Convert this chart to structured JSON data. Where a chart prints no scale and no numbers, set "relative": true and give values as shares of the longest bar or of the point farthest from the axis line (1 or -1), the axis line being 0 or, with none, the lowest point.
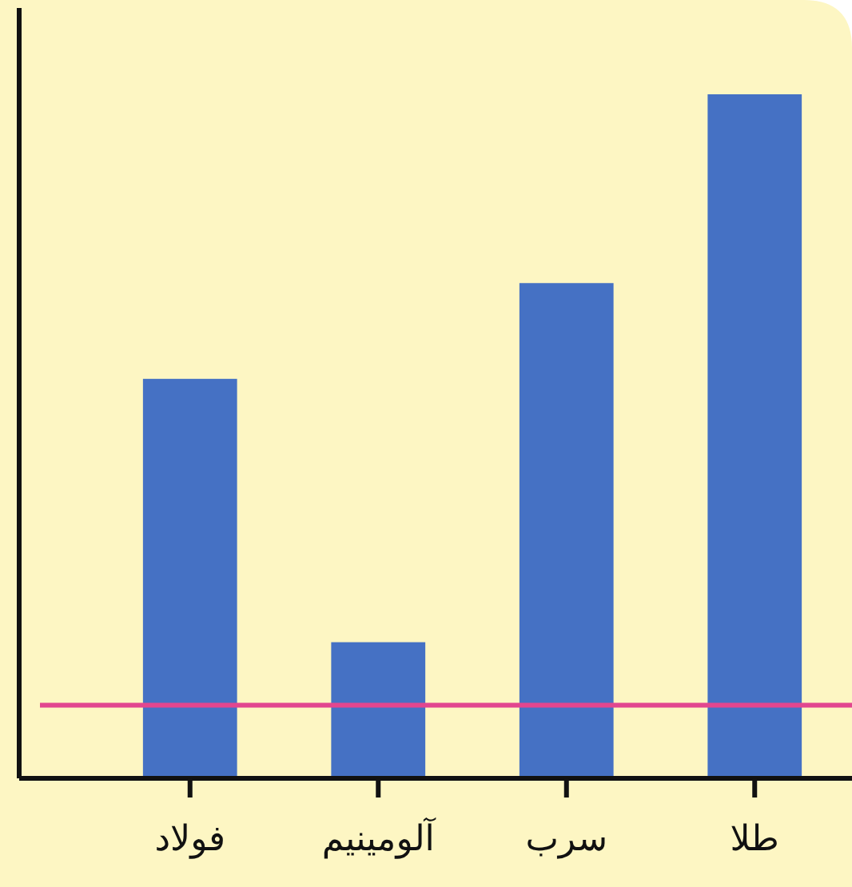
{
  "chart_data": {
    "type": "bar",
    "categories": [
      "فولاد",
      "آلومینیم",
      "سرب",
      "طلا"
    ],
    "values": [
      0.584,
      0.199,
      0.724,
      1
    ],
    "color": "#4571c4",
    "relative": true,
    "ref_lines": [
      {
        "axis": "y",
        "value": 0.107,
        "color": "#e2468f"
      }
    ]
  }
}
